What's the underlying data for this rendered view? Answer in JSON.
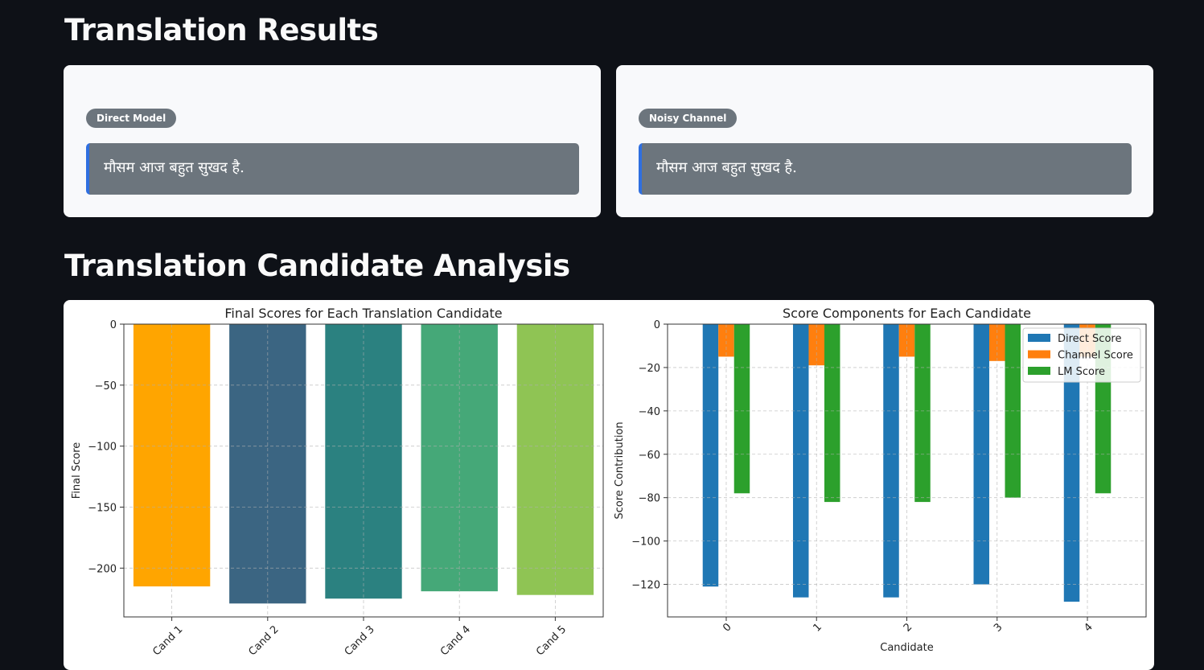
{
  "headings": {
    "results": "Translation Results",
    "analysis": "Translation Candidate Analysis"
  },
  "cards": [
    {
      "badge": "Direct Model",
      "text": "मौसम आज बहुत सुखद है."
    },
    {
      "badge": "Noisy Channel",
      "text": "मौसम आज बहुत सुखद है."
    }
  ],
  "chart_data": [
    {
      "type": "bar",
      "title": "Final Scores for Each Translation Candidate",
      "xlabel": "",
      "ylabel": "Final Score",
      "categories": [
        "Cand 1",
        "Cand 2",
        "Cand 3",
        "Cand 4",
        "Cand 5"
      ],
      "values": [
        -215,
        -229,
        -225,
        -219,
        -222
      ],
      "colors": [
        "#ffa500",
        "#3b6582",
        "#2b8180",
        "#45a878",
        "#8fc454"
      ],
      "yticks": [
        0,
        -50,
        -100,
        -150,
        -200
      ],
      "ylim": [
        -240,
        0
      ],
      "grid": true
    },
    {
      "type": "bar",
      "title": "Score Components for Each Candidate",
      "xlabel": "Candidate",
      "ylabel": "Score Contribution",
      "categories": [
        "0",
        "1",
        "2",
        "3",
        "4"
      ],
      "series": [
        {
          "name": "Direct Score",
          "color": "#1f77b4",
          "values": [
            -121,
            -126,
            -126,
            -120,
            -128
          ]
        },
        {
          "name": "Channel Score",
          "color": "#ff7f0e",
          "values": [
            -15,
            -19,
            -15,
            -17,
            -15
          ]
        },
        {
          "name": "LM Score",
          "color": "#2ca02c",
          "values": [
            -78,
            -82,
            -82,
            -80,
            -78
          ]
        }
      ],
      "yticks": [
        0,
        -20,
        -40,
        -60,
        -80,
        -100,
        -120
      ],
      "ylim": [
        -135,
        0
      ],
      "grid": true,
      "legend": "top-right"
    }
  ]
}
